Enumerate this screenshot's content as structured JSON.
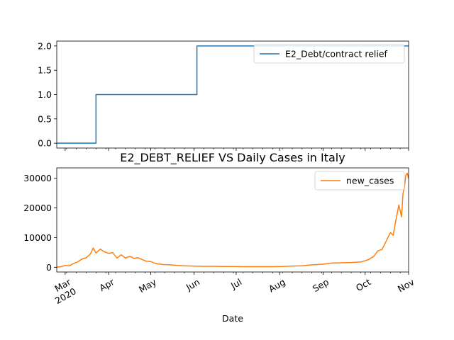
{
  "chart_data": [
    {
      "type": "line",
      "title": "",
      "xlabel": "",
      "ylabel": "",
      "ylim": [
        -0.1,
        2.1
      ],
      "yticks": [
        "0.0",
        "0.5",
        "1.0",
        "1.5",
        "2.0"
      ],
      "legend": "top-right",
      "series": [
        {
          "name": "E2_Debt/contract relief",
          "color": "#1f77b4",
          "x": [
            "2020-02-24",
            "2020-03-23",
            "2020-03-23",
            "2020-06-03",
            "2020-06-03",
            "2020-11-01"
          ],
          "values": [
            0,
            0,
            1,
            1,
            2,
            2
          ]
        }
      ]
    },
    {
      "type": "line",
      "title": "E2_DEBT_RELIEF VS Daily Cases in Italy",
      "xlabel": "Date",
      "ylabel": "",
      "ylim": [
        -1600,
        33500
      ],
      "yticks": [
        "0",
        "10000",
        "20000",
        "30000"
      ],
      "legend": "top-right",
      "x_tick_labels": [
        "Mar\n2020",
        "Apr",
        "May",
        "Jun",
        "Jul",
        "Aug",
        "Sep",
        "Oct",
        "Nov"
      ],
      "series": [
        {
          "name": "new_cases",
          "color": "#ff7f0e",
          "x": [
            "2020-02-24",
            "2020-02-27",
            "2020-03-01",
            "2020-03-04",
            "2020-03-07",
            "2020-03-10",
            "2020-03-13",
            "2020-03-16",
            "2020-03-19",
            "2020-03-21",
            "2020-03-23",
            "2020-03-26",
            "2020-03-29",
            "2020-04-01",
            "2020-04-04",
            "2020-04-07",
            "2020-04-10",
            "2020-04-13",
            "2020-04-16",
            "2020-04-19",
            "2020-04-22",
            "2020-04-25",
            "2020-04-28",
            "2020-05-01",
            "2020-05-05",
            "2020-05-10",
            "2020-05-15",
            "2020-05-20",
            "2020-05-25",
            "2020-05-31",
            "2020-06-07",
            "2020-06-15",
            "2020-06-22",
            "2020-06-29",
            "2020-07-06",
            "2020-07-13",
            "2020-07-20",
            "2020-07-27",
            "2020-08-03",
            "2020-08-10",
            "2020-08-17",
            "2020-08-24",
            "2020-08-31",
            "2020-09-07",
            "2020-09-14",
            "2020-09-21",
            "2020-09-28",
            "2020-10-03",
            "2020-10-07",
            "2020-10-10",
            "2020-10-13",
            "2020-10-16",
            "2020-10-19",
            "2020-10-21",
            "2020-10-23",
            "2020-10-25",
            "2020-10-27",
            "2020-10-28",
            "2020-10-29",
            "2020-10-30",
            "2020-10-31",
            "2020-11-01"
          ],
          "values": [
            50,
            200,
            600,
            500,
            1300,
            1800,
            2800,
            3200,
            4500,
            6500,
            4800,
            6100,
            5200,
            4700,
            4900,
            3100,
            4200,
            3100,
            3700,
            3000,
            3200,
            2600,
            2000,
            1900,
            1200,
            900,
            800,
            600,
            500,
            400,
            300,
            300,
            250,
            250,
            200,
            200,
            180,
            200,
            250,
            400,
            500,
            800,
            1000,
            1400,
            1500,
            1600,
            1800,
            2500,
            3600,
            5500,
            6000,
            8800,
            11700,
            10800,
            16000,
            21000,
            17000,
            24900,
            26800,
            31000,
            31700,
            29900
          ]
        }
      ]
    }
  ]
}
